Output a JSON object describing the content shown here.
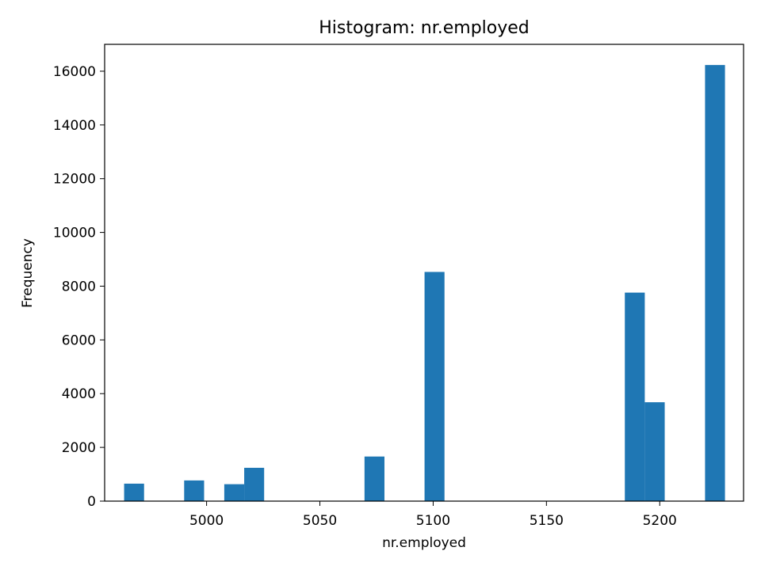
{
  "chart_data": {
    "type": "bar",
    "title": "Histogram: nr.employed",
    "xlabel": "nr.employed",
    "ylabel": "Frequency",
    "xlim": [
      4955,
      5237
    ],
    "ylim": [
      0,
      17000
    ],
    "xticks": [
      5000,
      5050,
      5100,
      5150,
      5200
    ],
    "yticks": [
      0,
      2000,
      4000,
      6000,
      8000,
      10000,
      12000,
      14000,
      16000
    ],
    "grid": false,
    "bar_color": "#1f77b4",
    "bins": [
      {
        "x0": 4963.6,
        "x1": 4972.4,
        "value": 650
      },
      {
        "x0": 4990.1,
        "x1": 4998.9,
        "value": 770
      },
      {
        "x0": 5007.8,
        "x1": 5016.6,
        "value": 630
      },
      {
        "x0": 5016.6,
        "x1": 5025.4,
        "value": 1240
      },
      {
        "x0": 5069.7,
        "x1": 5078.5,
        "value": 1660
      },
      {
        "x0": 5096.2,
        "x1": 5105.0,
        "value": 8530
      },
      {
        "x0": 5184.6,
        "x1": 5193.4,
        "value": 7760
      },
      {
        "x0": 5193.4,
        "x1": 5202.2,
        "value": 3680
      },
      {
        "x0": 5220.0,
        "x1": 5228.8,
        "value": 16230
      }
    ]
  }
}
